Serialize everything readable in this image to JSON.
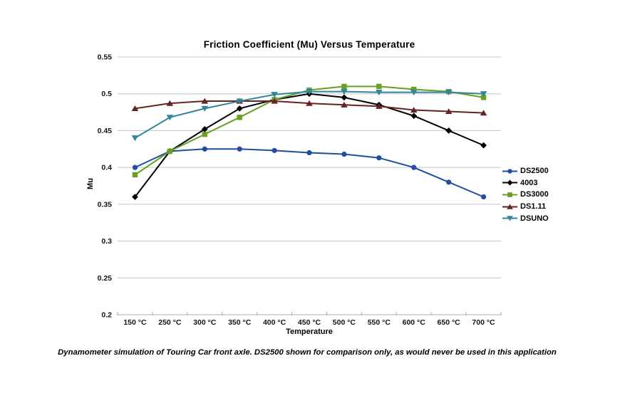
{
  "title": "Friction Coefficient (Mu) Versus Temperature",
  "x_axis_title": "Temperature",
  "y_axis_title": "Mu",
  "caption": "Dynamometer simulation of Touring Car front axle. DS2500 shown for comparison only, as would never be used in this application",
  "colors": {
    "gridline": "#C6C6C6",
    "axis_line": "#A9AFB5",
    "tick_text": "#141414"
  },
  "chart_data": {
    "type": "line",
    "title": "Friction Coefficient (Mu) Versus Temperature",
    "xlabel": "Temperature",
    "ylabel": "Mu",
    "grid": true,
    "legend_position": "right",
    "ylim": [
      0.2,
      0.55
    ],
    "categories": [
      "150 °C",
      "250 °C",
      "300 °C",
      "350 °C",
      "400 °C",
      "450 °C",
      "500 °C",
      "550 °C",
      "600 °C",
      "650 °C",
      "700 °C"
    ],
    "y_ticks": [
      {
        "label": "0.55",
        "value": 0.55
      },
      {
        "label": "0.5",
        "value": 0.5
      },
      {
        "label": "0.45",
        "value": 0.45
      },
      {
        "label": "0.4",
        "value": 0.4
      },
      {
        "label": "0.35",
        "value": 0.35
      },
      {
        "label": "0.3",
        "value": 0.3
      },
      {
        "label": "0.25",
        "value": 0.25
      },
      {
        "label": "0.2",
        "value": 0.2
      }
    ],
    "series": [
      {
        "name": "DS2500",
        "color": "#1F4E9E",
        "marker": "circle",
        "values": [
          0.4,
          0.422,
          0.425,
          0.425,
          0.423,
          0.42,
          0.418,
          0.413,
          0.4,
          0.38,
          0.36
        ]
      },
      {
        "name": "4003",
        "color": "#000000",
        "marker": "diamond",
        "values": [
          0.36,
          0.422,
          0.452,
          0.48,
          0.492,
          0.5,
          0.495,
          0.485,
          0.47,
          0.45,
          0.43
        ]
      },
      {
        "name": "DS3000",
        "color": "#69A023",
        "marker": "square",
        "values": [
          0.39,
          0.422,
          0.445,
          0.468,
          0.492,
          0.505,
          0.51,
          0.51,
          0.506,
          0.503,
          0.495
        ]
      },
      {
        "name": "DS1.11",
        "color": "#632423",
        "marker": "triangle-up",
        "values": [
          0.48,
          0.487,
          0.49,
          0.49,
          0.49,
          0.487,
          0.485,
          0.483,
          0.478,
          0.476,
          0.474
        ]
      },
      {
        "name": "DSUNO",
        "color": "#31859C",
        "marker": "triangle-down",
        "values": [
          0.44,
          0.468,
          0.48,
          0.49,
          0.499,
          0.503,
          0.503,
          0.502,
          0.502,
          0.502,
          0.5
        ]
      }
    ]
  }
}
